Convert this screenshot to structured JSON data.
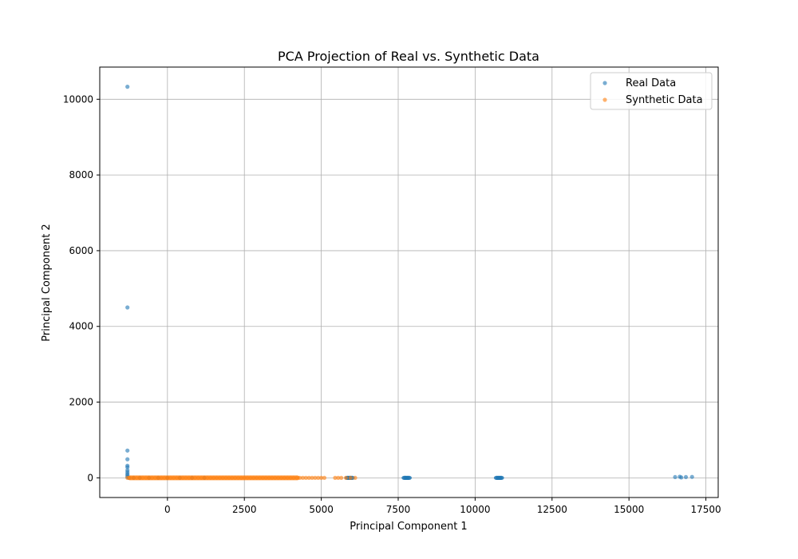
{
  "chart_data": {
    "type": "scatter",
    "title": "PCA Projection of Real vs. Synthetic Data",
    "xlabel": "Principal Component 1",
    "ylabel": "Principal Component 2",
    "xlim": [
      -2200,
      17900
    ],
    "ylim": [
      -520,
      10850
    ],
    "xticks": [
      0,
      2500,
      5000,
      7500,
      10000,
      12500,
      15000,
      17500
    ],
    "yticks": [
      0,
      2000,
      4000,
      6000,
      8000,
      10000
    ],
    "grid": true,
    "legend_position": "top-right",
    "series": [
      {
        "name": "Real Data",
        "color": "#1f77b4",
        "points": [
          [
            -1300,
            10330
          ],
          [
            -1300,
            4500
          ],
          [
            -1300,
            720
          ],
          [
            -1300,
            490
          ],
          [
            -1300,
            320
          ],
          [
            -1300,
            280
          ],
          [
            -1300,
            200
          ],
          [
            -1300,
            150
          ],
          [
            -1300,
            100
          ],
          [
            -1300,
            60
          ],
          [
            -1300,
            20
          ],
          [
            -1250,
            0
          ],
          [
            -1100,
            0
          ],
          [
            -900,
            0
          ],
          [
            -600,
            0
          ],
          [
            -300,
            0
          ],
          [
            0,
            0
          ],
          [
            400,
            0
          ],
          [
            800,
            0
          ],
          [
            1200,
            0
          ],
          [
            5850,
            0
          ],
          [
            5900,
            0
          ],
          [
            5950,
            0
          ],
          [
            6000,
            0
          ],
          [
            7700,
            0
          ],
          [
            7750,
            0
          ],
          [
            7800,
            0
          ],
          [
            7850,
            0
          ],
          [
            10700,
            0
          ],
          [
            10750,
            0
          ],
          [
            10800,
            0
          ],
          [
            10850,
            0
          ],
          [
            16500,
            20
          ],
          [
            16650,
            30
          ],
          [
            16700,
            10
          ],
          [
            16850,
            20
          ],
          [
            17050,
            25
          ]
        ]
      },
      {
        "name": "Synthetic Data",
        "color": "#ff7f0e",
        "points": [
          [
            -1300,
            0
          ],
          [
            -1200,
            0
          ],
          [
            -1100,
            0
          ],
          [
            -1000,
            0
          ],
          [
            -900,
            0
          ],
          [
            -800,
            0
          ],
          [
            -700,
            0
          ],
          [
            -600,
            0
          ],
          [
            -500,
            0
          ],
          [
            -400,
            0
          ],
          [
            -300,
            0
          ],
          [
            -200,
            0
          ],
          [
            -100,
            0
          ],
          [
            0,
            0
          ],
          [
            100,
            0
          ],
          [
            200,
            0
          ],
          [
            300,
            0
          ],
          [
            400,
            0
          ],
          [
            500,
            0
          ],
          [
            600,
            0
          ],
          [
            700,
            0
          ],
          [
            800,
            0
          ],
          [
            900,
            0
          ],
          [
            1000,
            0
          ],
          [
            1100,
            0
          ],
          [
            1200,
            0
          ],
          [
            1300,
            0
          ],
          [
            1400,
            0
          ],
          [
            1500,
            0
          ],
          [
            1600,
            0
          ],
          [
            1700,
            0
          ],
          [
            1800,
            0
          ],
          [
            1900,
            0
          ],
          [
            2000,
            0
          ],
          [
            2100,
            0
          ],
          [
            2200,
            0
          ],
          [
            2300,
            0
          ],
          [
            2400,
            0
          ],
          [
            2500,
            0
          ],
          [
            2600,
            0
          ],
          [
            2700,
            0
          ],
          [
            2800,
            0
          ],
          [
            2900,
            0
          ],
          [
            3000,
            0
          ],
          [
            3100,
            0
          ],
          [
            3200,
            0
          ],
          [
            3300,
            0
          ],
          [
            3400,
            0
          ],
          [
            3500,
            0
          ],
          [
            3600,
            0
          ],
          [
            3700,
            0
          ],
          [
            3800,
            0
          ],
          [
            3900,
            0
          ],
          [
            4000,
            0
          ],
          [
            4100,
            0
          ],
          [
            4200,
            0
          ],
          [
            4300,
            0
          ],
          [
            4400,
            0
          ],
          [
            4500,
            0
          ],
          [
            4600,
            0
          ],
          [
            4700,
            0
          ],
          [
            4800,
            0
          ],
          [
            4900,
            0
          ],
          [
            5000,
            0
          ],
          [
            5100,
            0
          ],
          [
            5450,
            0
          ],
          [
            5550,
            0
          ],
          [
            5650,
            0
          ],
          [
            5800,
            0
          ],
          [
            5950,
            0
          ],
          [
            6100,
            0
          ]
        ]
      }
    ]
  }
}
